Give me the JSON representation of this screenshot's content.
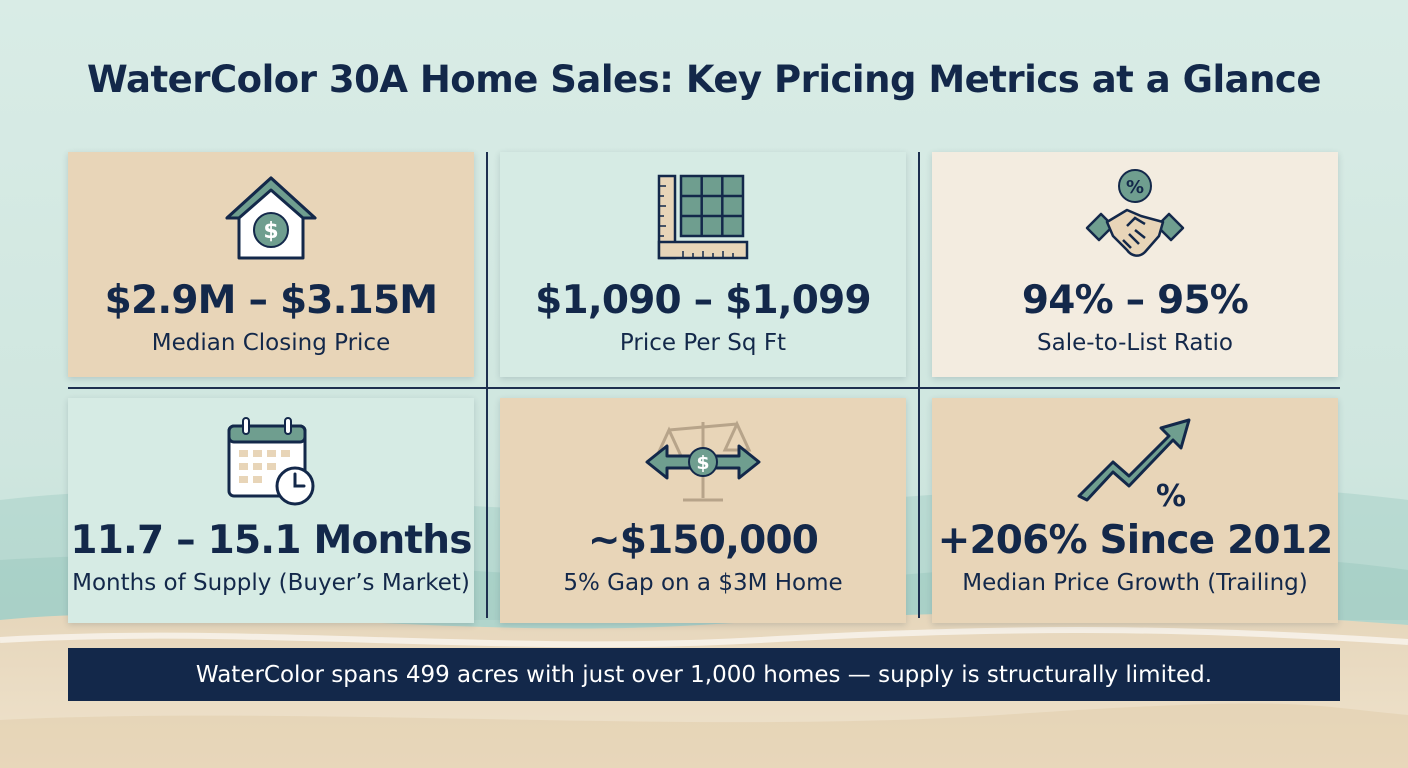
{
  "title": "WaterColor 30A Home Sales: Key Pricing Metrics at a Glance",
  "colors": {
    "navy": "#13284a",
    "teal": "#6f9e8f",
    "tan_card": "#e8d5b8",
    "mint_card": "#d6ebe4",
    "cream_card": "#f3ece0"
  },
  "cards": [
    {
      "icon": "house-dollar-icon",
      "value": "$2.9M – $3.15M",
      "label": "Median Closing Price"
    },
    {
      "icon": "grid-ruler-icon",
      "value": "$1,090 – $1,099",
      "label": "Price Per Sq Ft"
    },
    {
      "icon": "handshake-percent-icon",
      "value": "94% – 95%",
      "label": "Sale-to-List Ratio"
    },
    {
      "icon": "calendar-clock-icon",
      "value": "11.7 – 15.1 Months",
      "label": "Months of Supply (Buyer’s Market)"
    },
    {
      "icon": "scale-arrows-dollar-icon",
      "value": "~$150,000",
      "label": "5% Gap on a $3M Home"
    },
    {
      "icon": "trend-arrow-percent-icon",
      "value": "+206% Since 2012",
      "label": "Median Price Growth (Trailing)"
    }
  ],
  "footer": "WaterColor spans 499 acres with just over 1,000 homes — supply is structurally limited."
}
